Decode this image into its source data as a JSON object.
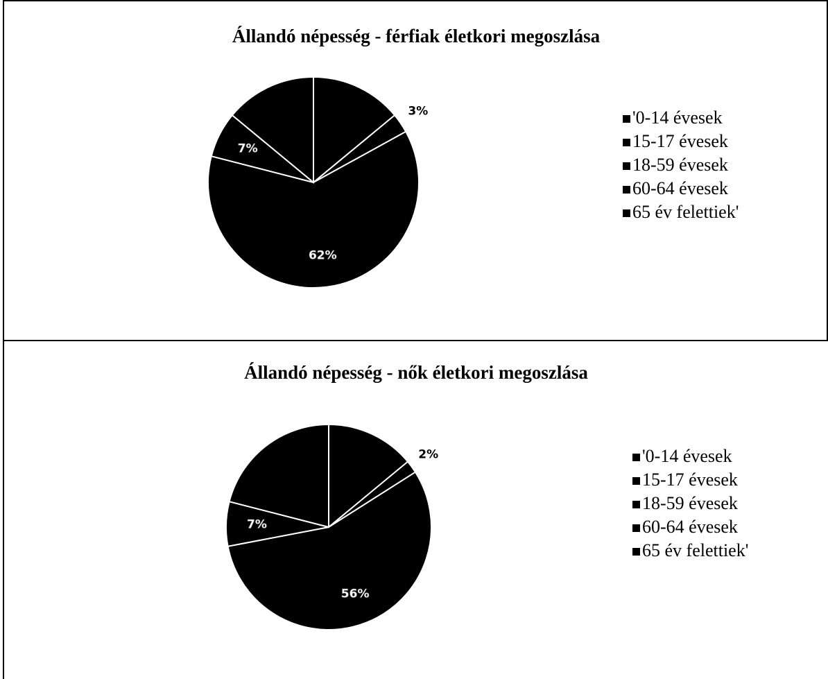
{
  "chart_data": [
    {
      "type": "pie",
      "title": "Állandó népesség - férfiak életkori megoszlása",
      "categories": [
        "'0-14 évesek",
        "15-17 évesek",
        "18-59 évesek",
        "60-64 évesek",
        "65 év felettiek'"
      ],
      "values": [
        14,
        3,
        62,
        7,
        14
      ],
      "value_labels": [
        null,
        "3%",
        "62%",
        "7%",
        null
      ],
      "colors": [
        "#000000",
        "#000000",
        "#000000",
        "#000000",
        "#000000"
      ],
      "legend": "right"
    },
    {
      "type": "pie",
      "title": "Állandó népesség - nők életkori megoszlása",
      "categories": [
        "'0-14 évesek",
        "15-17 évesek",
        "18-59 évesek",
        "60-64 évesek",
        "65 év felettiek'"
      ],
      "values": [
        14,
        2,
        56,
        7,
        21
      ],
      "value_labels": [
        null,
        "2%",
        "56%",
        "7%",
        null
      ],
      "colors": [
        "#000000",
        "#000000",
        "#000000",
        "#000000",
        "#000000"
      ],
      "legend": "right"
    }
  ]
}
